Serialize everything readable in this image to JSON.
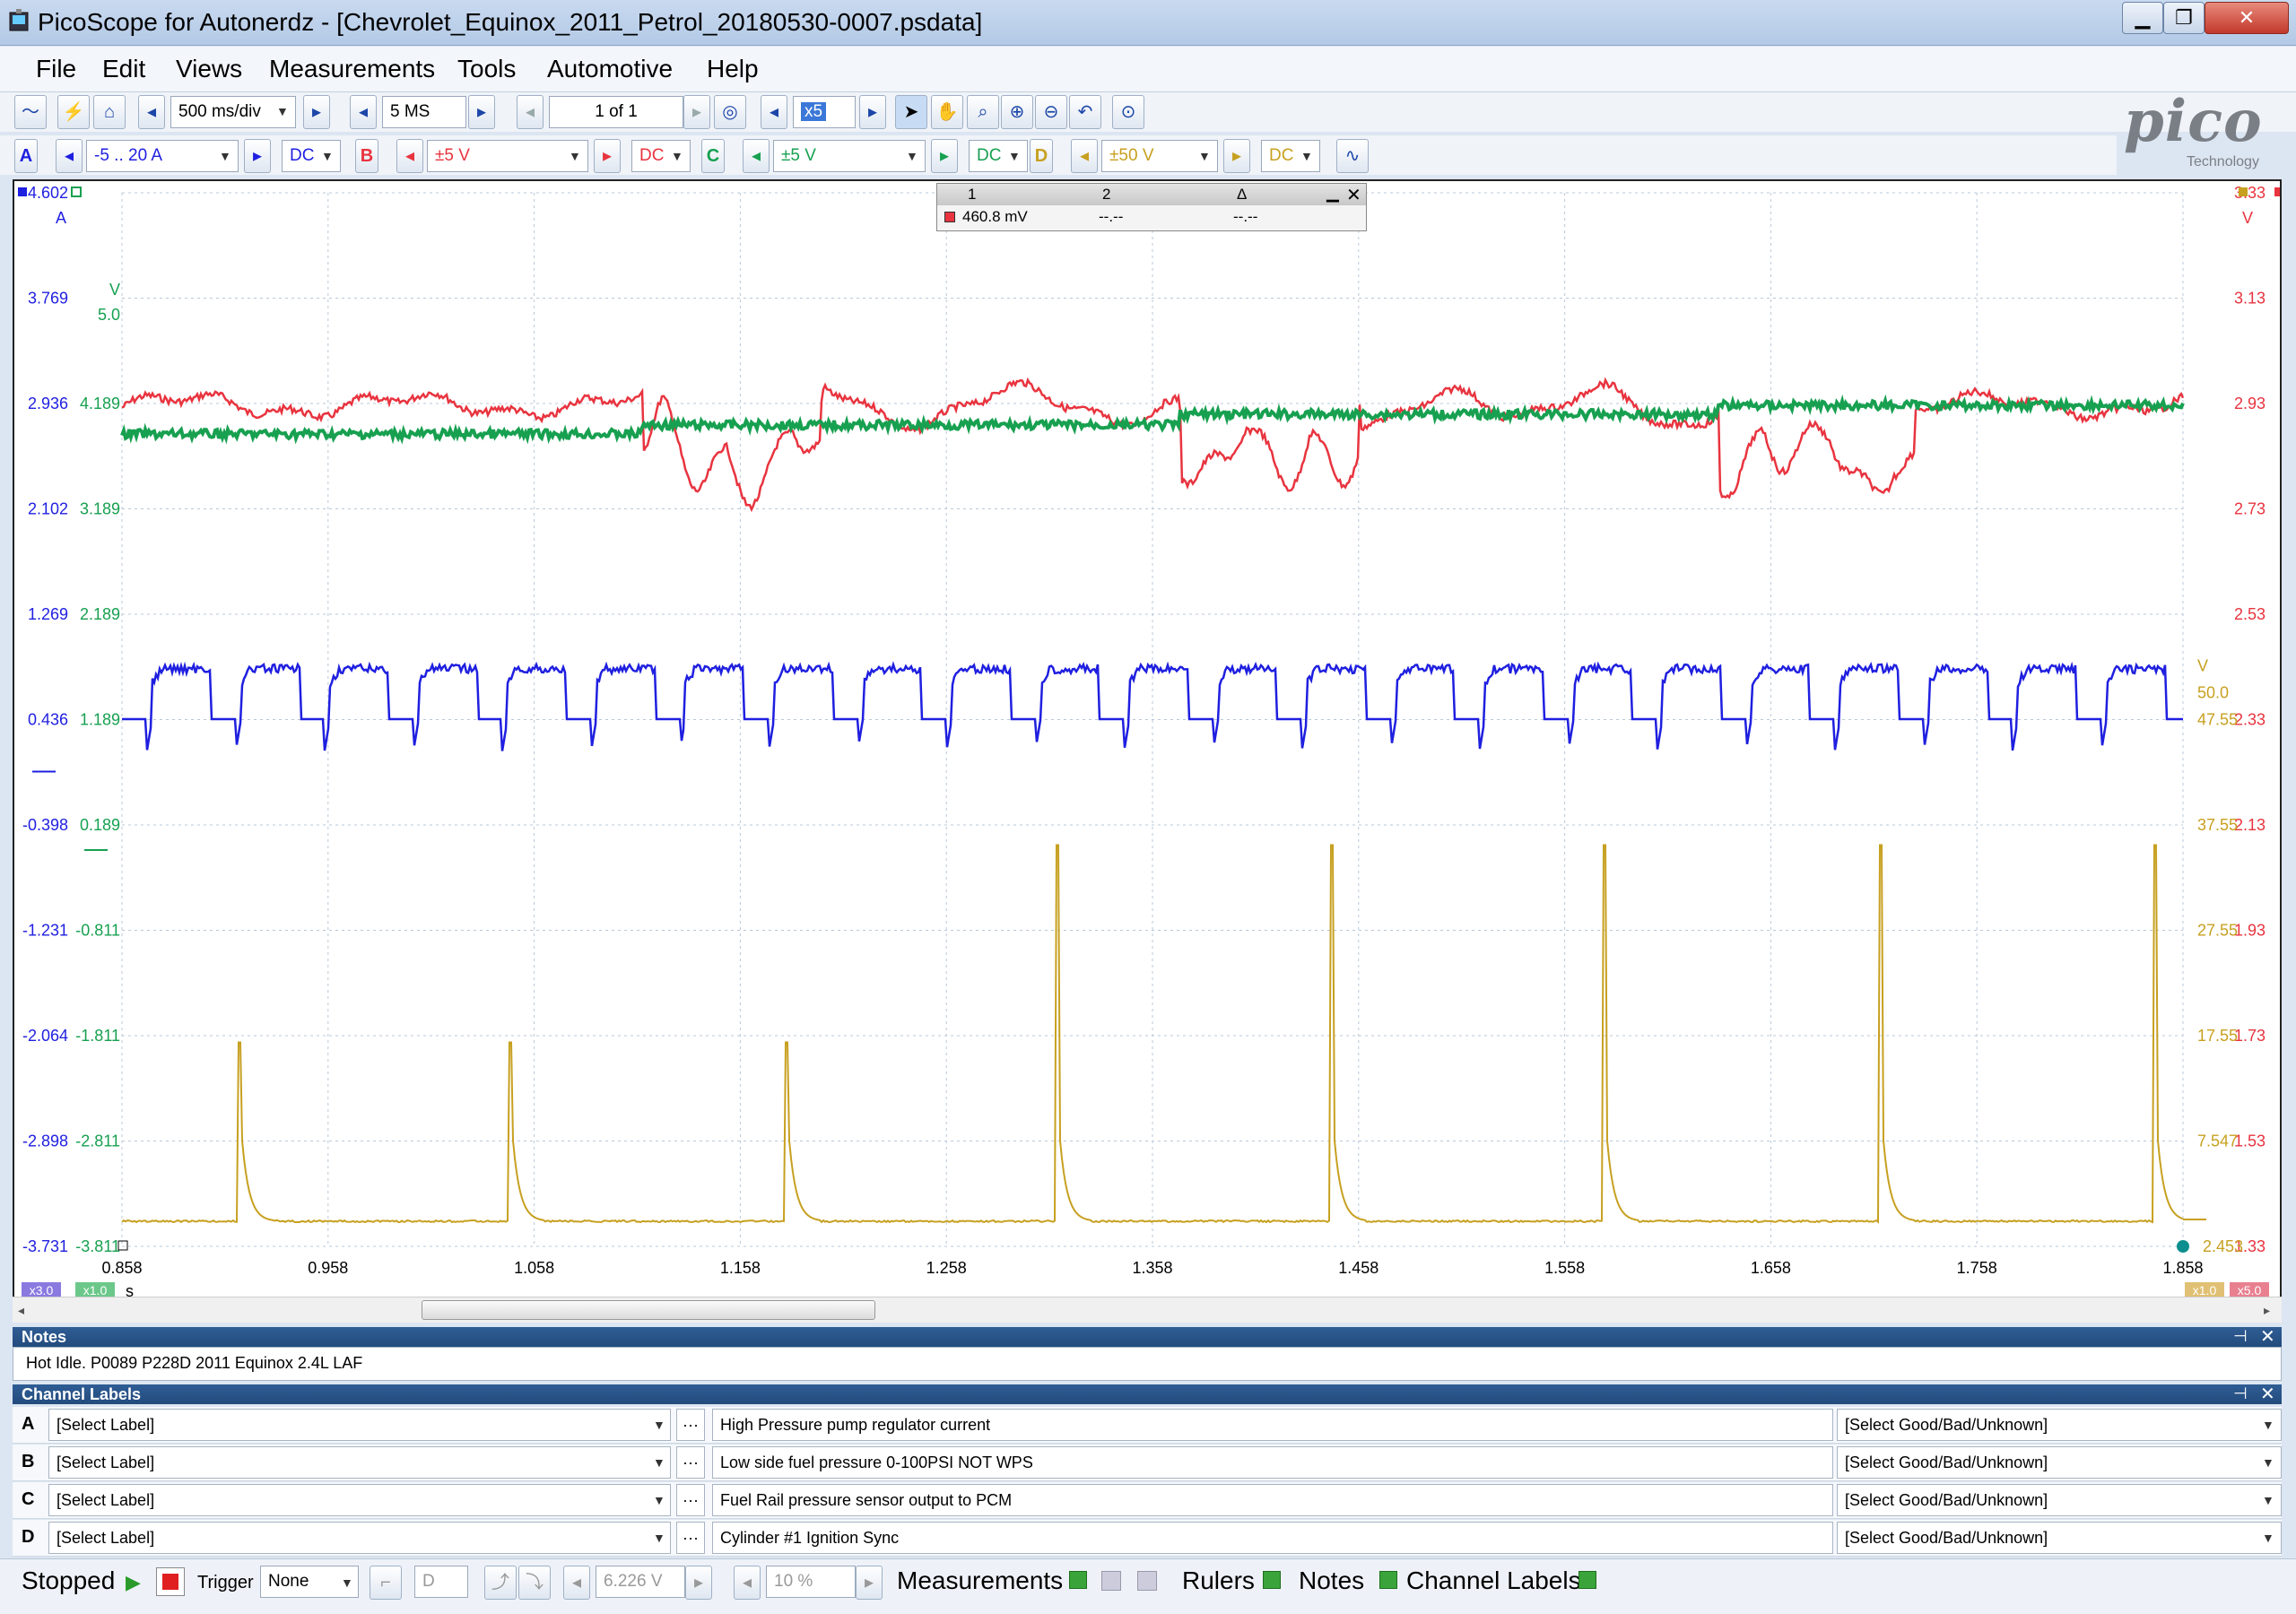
{
  "window": {
    "title": "PicoScope for Autonerdz - [Chevrolet_Equinox_2011_Petrol_20180530-0007.psdata]"
  },
  "menu": [
    "File",
    "Edit",
    "Views",
    "Measurements",
    "Tools",
    "Automotive",
    "Help"
  ],
  "toolbar": {
    "timebase": "500 ms/div",
    "samples": "5 MS",
    "buffer": "1 of 1",
    "zoom": "x5"
  },
  "channels": [
    {
      "letter": "A",
      "range": "-5 .. 20 A",
      "coupling": "DC",
      "color": "#1f1fe0"
    },
    {
      "letter": "B",
      "range": "±5 V",
      "coupling": "DC",
      "color": "#e8343f"
    },
    {
      "letter": "C",
      "range": "±5 V",
      "coupling": "DC",
      "color": "#17a050"
    },
    {
      "letter": "D",
      "range": "±50 V",
      "coupling": "DC",
      "color": "#c7a020"
    }
  ],
  "logo": {
    "name": "pico",
    "sub": "Technology"
  },
  "measurement": {
    "col1": "1",
    "col2": "2",
    "col3": "Δ",
    "v1": "460.8 mV",
    "v2": "--.--",
    "v3": "--.--"
  },
  "axes": {
    "a_unit": "A",
    "c_unit": "V",
    "b_unit": "V",
    "d_unit": "V",
    "a_ticks": [
      "4.602",
      "3.769",
      "2.936",
      "2.102",
      "1.269",
      "0.436",
      "-0.398",
      "-1.231",
      "-2.064",
      "-2.898",
      "-3.731"
    ],
    "c_ticks": [
      "5.0",
      "4.189",
      "3.189",
      "2.189",
      "1.189",
      "0.189",
      "-0.811",
      "-1.811",
      "-2.811",
      "-3.811"
    ],
    "b_ticks": [
      "3.33",
      "3.13",
      "2.93",
      "2.73",
      "2.53",
      "2.33",
      "2.13",
      "1.93",
      "1.73",
      "1.53",
      "1.33"
    ],
    "d_ticks": [
      "50.0",
      "47.55",
      "37.55",
      "27.55",
      "17.55",
      "7.547",
      "2.453"
    ],
    "x_ticks": [
      "0.858",
      "0.958",
      "1.058",
      "1.158",
      "1.258",
      "1.358",
      "1.458",
      "1.558",
      "1.658",
      "1.758",
      "1.858"
    ],
    "x_unit": "s",
    "badges": {
      "a": "x3.0",
      "c": "x1.0",
      "d": "x1.0",
      "b": "x5.0"
    }
  },
  "notes": {
    "header": "Notes",
    "text": "Hot Idle. P0089 P228D 2011 Equinox 2.4L LAF"
  },
  "labels": {
    "header": "Channel Labels",
    "select": "[Select Label]",
    "gbu": "[Select Good/Bad/Unknown]",
    "more": "···",
    "rows": [
      {
        "letter": "A",
        "desc": "High Pressure pump regulator current"
      },
      {
        "letter": "B",
        "desc": "Low side fuel pressure 0-100PSI NOT WPS"
      },
      {
        "letter": "C",
        "desc": "Fuel Rail pressure sensor output to PCM"
      },
      {
        "letter": "D",
        "desc": "Cylinder #1 Ignition Sync"
      }
    ]
  },
  "status": {
    "state": "Stopped",
    "trigger_label": "Trigger",
    "trigger_mode": "None",
    "trigger_channel": "D",
    "trigger_level": "6.226 V",
    "pretrigger": "10 %",
    "measurements": "Measurements",
    "rulers": "Rulers",
    "notes": "Notes",
    "channel_labels": "Channel Labels"
  }
}
